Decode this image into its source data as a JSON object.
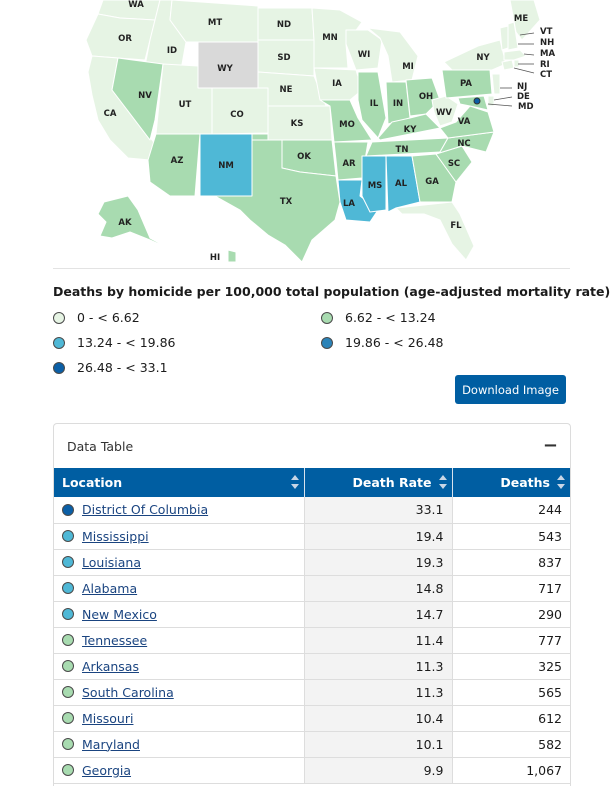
{
  "legend": {
    "title": "Deaths by homicide per 100,000 total population (age-adjusted mortality rate)",
    "items": [
      {
        "label": "0 - < 6.62",
        "color": "#e6f4e4"
      },
      {
        "label": "6.62 - < 13.24",
        "color": "#a8dbb0"
      },
      {
        "label": "13.24 - < 19.86",
        "color": "#4fb8d6"
      },
      {
        "label": "19.86 - < 26.48",
        "color": "#2b83b8"
      },
      {
        "label": "26.48 - < 33.1",
        "color": "#0b5fa6"
      }
    ]
  },
  "download_button": "Download Image",
  "map": {
    "no_data_color": "#d9d9d9",
    "state_labels": [
      "WA",
      "OR",
      "CA",
      "ID",
      "NV",
      "MT",
      "WY",
      "UT",
      "AZ",
      "CO",
      "NM",
      "ND",
      "SD",
      "NE",
      "KS",
      "OK",
      "TX",
      "MN",
      "IA",
      "MO",
      "AR",
      "LA",
      "WI",
      "IL",
      "MI",
      "IN",
      "OH",
      "KY",
      "TN",
      "MS",
      "AL",
      "GA",
      "FL",
      "SC",
      "NC",
      "VA",
      "WV",
      "PA",
      "NY",
      "ME",
      "VT",
      "NH",
      "MA",
      "RI",
      "CT",
      "NJ",
      "DE",
      "MD",
      "AK",
      "HI"
    ]
  },
  "data_table": {
    "title": "Data Table",
    "collapse_symbol": "−",
    "columns": {
      "location": "Location",
      "death_rate": "Death Rate",
      "deaths": "Deaths"
    },
    "rows": [
      {
        "location": "District Of Columbia",
        "rate": "33.1",
        "deaths": "244",
        "color": "#0b5fa6"
      },
      {
        "location": "Mississippi",
        "rate": "19.4",
        "deaths": "543",
        "color": "#4fb8d6"
      },
      {
        "location": "Louisiana",
        "rate": "19.3",
        "deaths": "837",
        "color": "#4fb8d6"
      },
      {
        "location": "Alabama",
        "rate": "14.8",
        "deaths": "717",
        "color": "#4fb8d6"
      },
      {
        "location": "New Mexico",
        "rate": "14.7",
        "deaths": "290",
        "color": "#4fb8d6"
      },
      {
        "location": "Tennessee",
        "rate": "11.4",
        "deaths": "777",
        "color": "#a8dbb0"
      },
      {
        "location": "Arkansas",
        "rate": "11.3",
        "deaths": "325",
        "color": "#a8dbb0"
      },
      {
        "location": "South Carolina",
        "rate": "11.3",
        "deaths": "565",
        "color": "#a8dbb0"
      },
      {
        "location": "Missouri",
        "rate": "10.4",
        "deaths": "612",
        "color": "#a8dbb0"
      },
      {
        "location": "Maryland",
        "rate": "10.1",
        "deaths": "582",
        "color": "#a8dbb0"
      },
      {
        "location": "Georgia",
        "rate": "9.9",
        "deaths": "1,067",
        "color": "#a8dbb0"
      }
    ]
  }
}
